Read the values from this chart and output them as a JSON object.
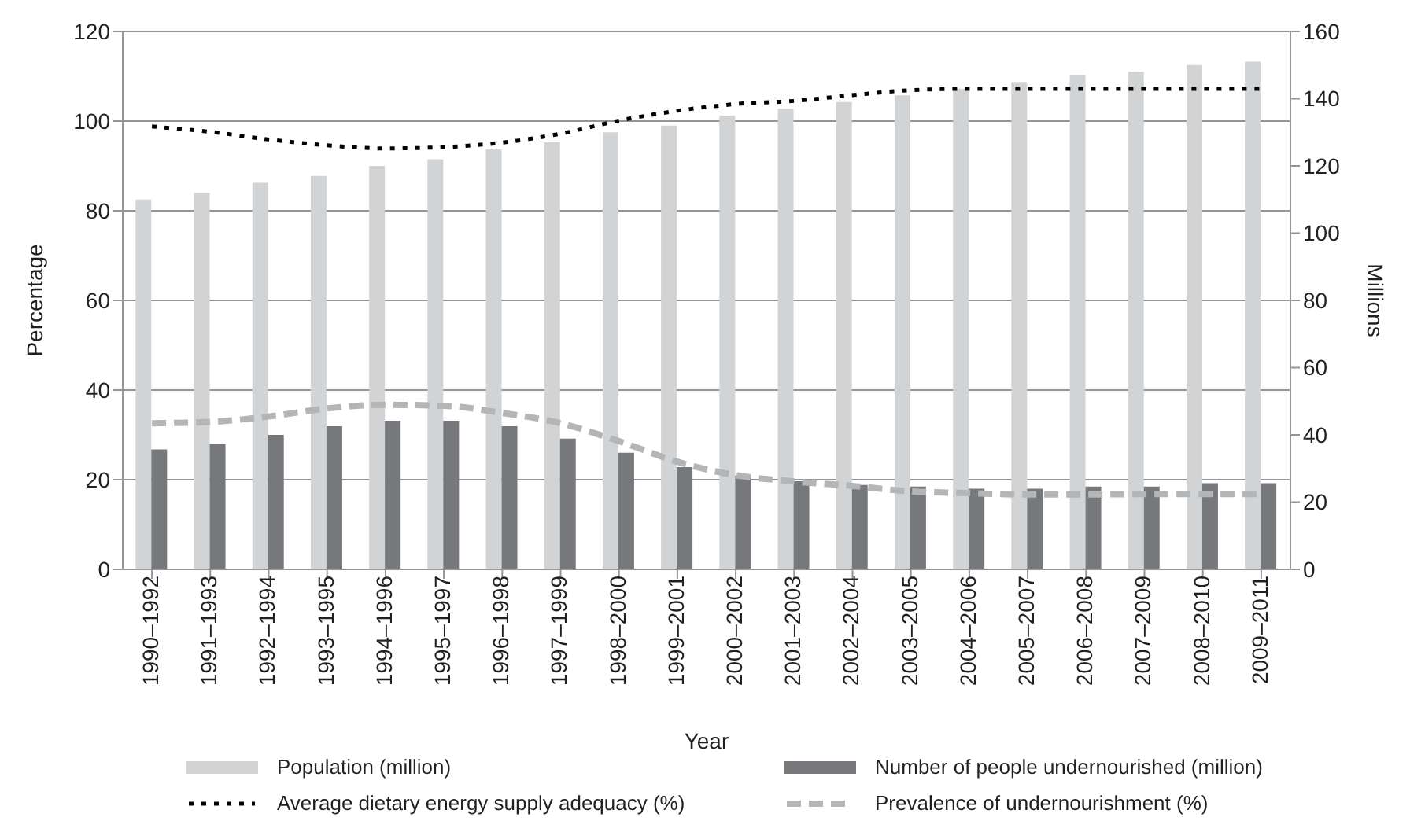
{
  "chart_data": {
    "type": "bar",
    "xlabel": "Year",
    "ylabel": "Percentage",
    "y2label": "Millions",
    "categories": [
      "1990–1992",
      "1991–1993",
      "1992–1994",
      "1993–1995",
      "1994–1996",
      "1995–1997",
      "1996–1998",
      "1997–1999",
      "1998–2000",
      "1999–2001",
      "2000–2002",
      "2001–2003",
      "2002–2004",
      "2003–2005",
      "2004–2006",
      "2005–2007",
      "2006–2008",
      "2007–2009",
      "2008–2010",
      "2009–2011"
    ],
    "series": [
      {
        "name": "Population (million)",
        "axis": "y2",
        "color": "#d1d3d4",
        "values": [
          110,
          112,
          115,
          117,
          120,
          122,
          125,
          127,
          130,
          132,
          135,
          137,
          139,
          141,
          143,
          145,
          147,
          148,
          150,
          151
        ]
      },
      {
        "name": "Number of people undernourished (million)",
        "axis": "y2",
        "color": "#77787b",
        "values": [
          35.7,
          37.3,
          40,
          42.6,
          44.2,
          44.2,
          42.6,
          38.9,
          34.7,
          30.4,
          27.9,
          26.2,
          25.1,
          24.6,
          24,
          24,
          24.6,
          24.6,
          25.6,
          25.6
        ]
      },
      {
        "name": "Average dietary energy supply adequacy (%)",
        "type": "line",
        "line_style": "dotted",
        "color": "#000000",
        "values": [
          98.8,
          97.6,
          95.9,
          94.6,
          93.9,
          94.2,
          95.2,
          97.2,
          100.1,
          102.3,
          103.8,
          104.5,
          105.8,
          106.9,
          107.2,
          107.2,
          107.2,
          107.2,
          107.2,
          107.2
        ]
      },
      {
        "name": "Prevalence of undernourishment (%)",
        "type": "line",
        "line_style": "dashed",
        "color": "#b3b5b7",
        "values": [
          32.6,
          32.9,
          34.1,
          35.9,
          36.7,
          36.5,
          34.9,
          32.6,
          28.6,
          24,
          21,
          19.6,
          18.6,
          17.4,
          17,
          16.7,
          16.7,
          16.8,
          16.8,
          16.8
        ]
      }
    ],
    "ylim": [
      0,
      120
    ],
    "yticks": [
      0,
      20,
      40,
      60,
      80,
      100,
      120
    ],
    "y2lim": [
      0,
      160
    ],
    "y2ticks": [
      0,
      20,
      40,
      60,
      80,
      100,
      120,
      140,
      160
    ],
    "grid": "y",
    "legend": "bottom",
    "marker": "none"
  }
}
